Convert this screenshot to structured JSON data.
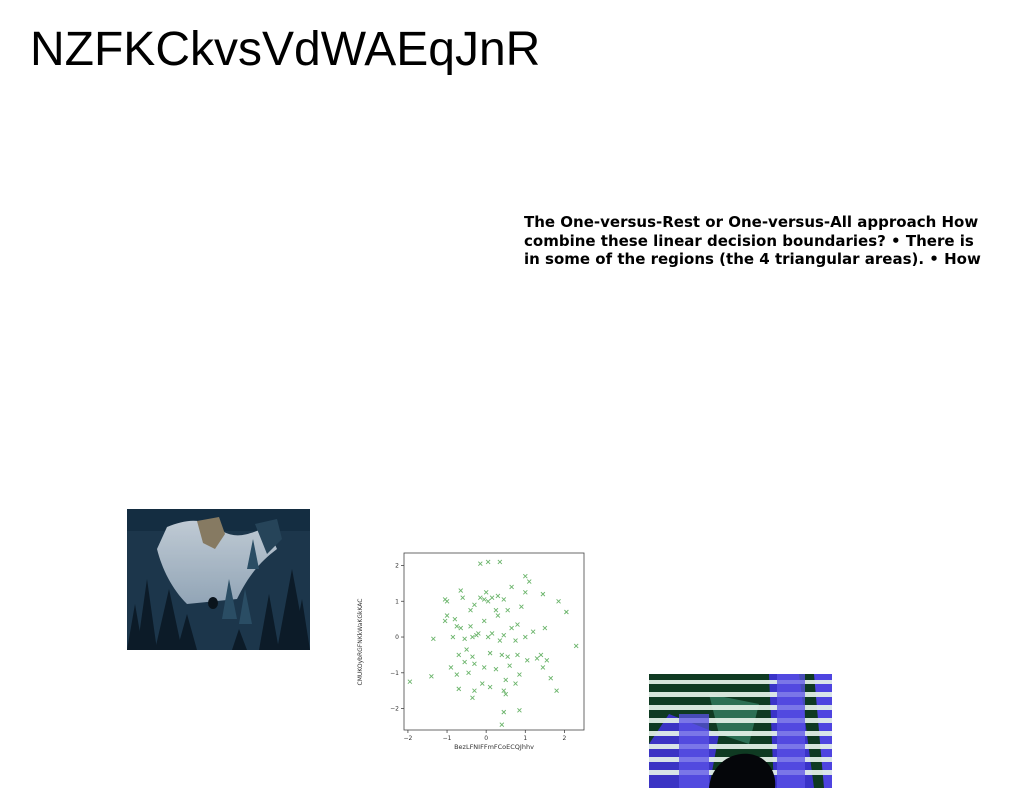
{
  "title": "NZFKCkvsVdWAEqJnR",
  "text_block": {
    "lines": [
      "The One-versus-Rest or One-versus-All approach How",
      "combine these linear decision boundaries? • There is",
      "in some of the regions (the 4 triangular areas). • How"
    ]
  },
  "chart_data": {
    "type": "scatter",
    "xlabel": "BezLFNIFFmFCoECQJhhv",
    "ylabel": "CMUKOybRGFNKkWaKGkKAC",
    "xlim": [
      -2.1,
      2.5
    ],
    "ylim": [
      -2.6,
      2.35
    ],
    "xticks": [
      "−2",
      "−1",
      "0",
      "1",
      "2"
    ],
    "yticks": [
      "−2",
      "−1",
      "0",
      "1",
      "2"
    ],
    "marker": "x",
    "color": "#6ab46a",
    "grid": false,
    "points": [
      [
        -0.15,
        2.05
      ],
      [
        0.05,
        2.1
      ],
      [
        0.35,
        2.1
      ],
      [
        1.0,
        1.7
      ],
      [
        1.1,
        1.55
      ],
      [
        0.65,
        1.4
      ],
      [
        -1.0,
        1.0
      ],
      [
        -1.05,
        1.05
      ],
      [
        -0.65,
        1.3
      ],
      [
        -0.6,
        1.1
      ],
      [
        -0.15,
        1.1
      ],
      [
        -0.05,
        1.05
      ],
      [
        0.05,
        1.0
      ],
      [
        0.15,
        1.1
      ],
      [
        0.3,
        1.15
      ],
      [
        0.45,
        1.05
      ],
      [
        1.0,
        1.25
      ],
      [
        1.45,
        1.2
      ],
      [
        1.85,
        1.0
      ],
      [
        -1.0,
        0.6
      ],
      [
        -1.05,
        0.45
      ],
      [
        -0.8,
        0.5
      ],
      [
        -0.4,
        0.75
      ],
      [
        -0.3,
        0.9
      ],
      [
        0.0,
        1.25
      ],
      [
        0.25,
        0.75
      ],
      [
        0.3,
        0.6
      ],
      [
        0.55,
        0.75
      ],
      [
        0.9,
        0.85
      ],
      [
        2.05,
        0.7
      ],
      [
        -0.75,
        0.3
      ],
      [
        -0.65,
        0.25
      ],
      [
        -0.4,
        0.3
      ],
      [
        -0.2,
        0.1
      ],
      [
        -0.05,
        0.45
      ],
      [
        0.15,
        0.1
      ],
      [
        0.45,
        0.05
      ],
      [
        0.65,
        0.25
      ],
      [
        0.8,
        0.35
      ],
      [
        1.2,
        0.15
      ],
      [
        1.5,
        0.25
      ],
      [
        -1.35,
        -0.05
      ],
      [
        -0.85,
        0.0
      ],
      [
        -0.55,
        -0.05
      ],
      [
        -0.35,
        0.0
      ],
      [
        -0.25,
        0.05
      ],
      [
        0.05,
        0.0
      ],
      [
        0.35,
        -0.1
      ],
      [
        0.75,
        -0.1
      ],
      [
        1.0,
        0.0
      ],
      [
        2.3,
        -0.25
      ],
      [
        -0.7,
        -0.5
      ],
      [
        -0.5,
        -0.35
      ],
      [
        -0.35,
        -0.55
      ],
      [
        0.1,
        -0.45
      ],
      [
        0.4,
        -0.5
      ],
      [
        0.55,
        -0.55
      ],
      [
        0.8,
        -0.5
      ],
      [
        1.05,
        -0.65
      ],
      [
        1.3,
        -0.6
      ],
      [
        1.4,
        -0.5
      ],
      [
        1.55,
        -0.65
      ],
      [
        -0.9,
        -0.85
      ],
      [
        -0.55,
        -0.7
      ],
      [
        -0.3,
        -0.75
      ],
      [
        -0.05,
        -0.85
      ],
      [
        0.25,
        -0.9
      ],
      [
        0.6,
        -0.8
      ],
      [
        0.85,
        -1.05
      ],
      [
        1.45,
        -0.85
      ],
      [
        -1.4,
        -1.1
      ],
      [
        -0.75,
        -1.05
      ],
      [
        -0.45,
        -1.0
      ],
      [
        -0.1,
        -1.3
      ],
      [
        0.5,
        -1.2
      ],
      [
        0.75,
        -1.3
      ],
      [
        1.65,
        -1.15
      ],
      [
        -1.95,
        -1.25
      ],
      [
        -0.7,
        -1.45
      ],
      [
        -0.3,
        -1.5
      ],
      [
        0.1,
        -1.4
      ],
      [
        0.45,
        -1.5
      ],
      [
        1.8,
        -1.5
      ],
      [
        -0.35,
        -1.7
      ],
      [
        0.5,
        -1.6
      ],
      [
        0.45,
        -2.1
      ],
      [
        0.85,
        -2.05
      ],
      [
        0.4,
        -2.45
      ]
    ]
  }
}
